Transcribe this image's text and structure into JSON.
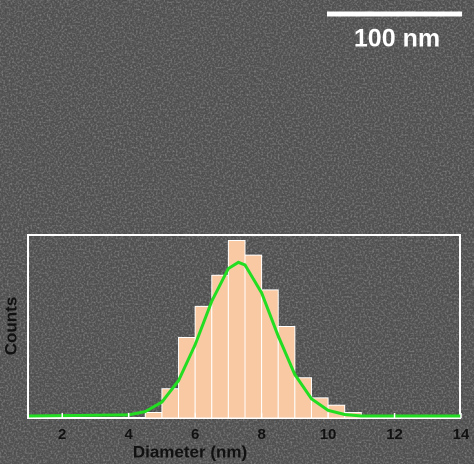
{
  "chart_data": {
    "type": "histogram",
    "x_label": "Diameter (nm)",
    "y_label": "Counts",
    "annotations": [
      "100 nm"
    ],
    "bins": [
      4.5,
      5,
      5.5,
      6,
      6.5,
      7,
      7.5,
      8,
      8.5,
      9,
      9.5,
      10,
      10.5,
      11
    ],
    "values": [
      3,
      16,
      44,
      61,
      78,
      97,
      89,
      70,
      50,
      22,
      11,
      7,
      3
    ],
    "color": "#f8c9a2",
    "fit": {
      "color": "#22dd22",
      "x": [
        1,
        4,
        4.5,
        5,
        5.5,
        6,
        6.5,
        7,
        7.3,
        7.5,
        8,
        8.5,
        9,
        9.5,
        10,
        10.5,
        11,
        14
      ],
      "values": [
        0,
        0.6,
        2.4,
        7.6,
        19.3,
        39,
        62.8,
        80.6,
        84,
        82.5,
        67.3,
        43.7,
        22.7,
        9.4,
        3.1,
        0.8,
        0,
        0
      ]
    },
    "xlim": [
      1,
      14
    ],
    "xticks": [
      2,
      4,
      6,
      8,
      10,
      12,
      14
    ],
    "ylim": [
      0,
      100
    ]
  }
}
